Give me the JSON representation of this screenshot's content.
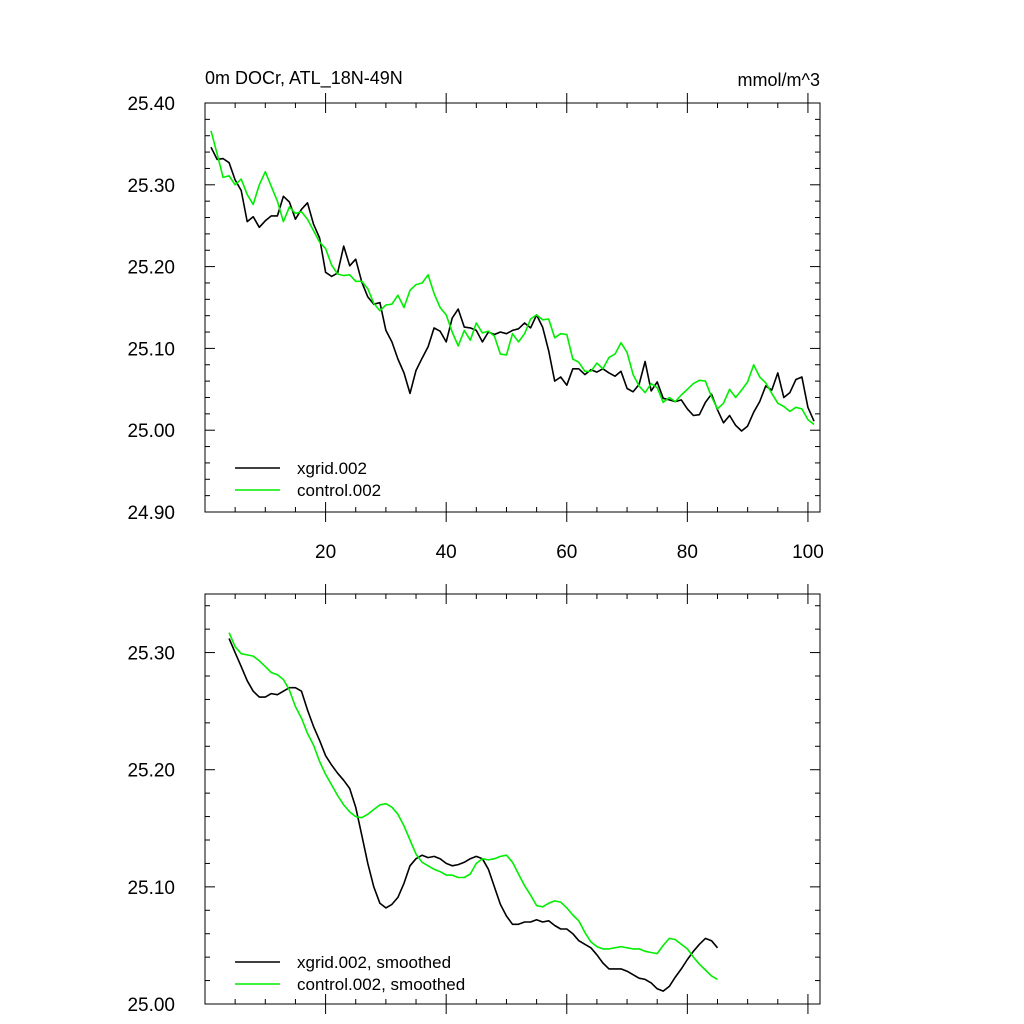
{
  "figure": {
    "title": "0m DOCr, ATL_18N-49N",
    "units": "mmol/m^3"
  },
  "colors": {
    "xgrid": "#000000",
    "control": "#00ee00"
  },
  "chart_data": [
    {
      "type": "line",
      "title": "0m DOCr, ATL_18N-49N",
      "units_label": "mmol/m^3",
      "xlabel": "",
      "ylabel": "",
      "xlim": [
        0,
        102
      ],
      "ylim": [
        24.9,
        25.4
      ],
      "xticks": [
        20,
        40,
        60,
        80,
        100
      ],
      "yticks": [
        24.9,
        25.0,
        25.1,
        25.2,
        25.3,
        25.4
      ],
      "ytick_labels": [
        "24.90",
        "25.00",
        "25.10",
        "25.20",
        "25.30",
        "25.40"
      ],
      "legend_position": "bottom-left",
      "x_start": 1,
      "series": [
        {
          "name": "xgrid.002",
          "color": "#000000",
          "values": [
            25.346,
            25.331,
            25.332,
            25.327,
            25.306,
            25.293,
            25.255,
            25.261,
            25.248,
            25.256,
            25.262,
            25.262,
            25.286,
            25.279,
            25.258,
            25.27,
            25.278,
            25.252,
            25.235,
            25.193,
            25.188,
            25.192,
            25.225,
            25.201,
            25.209,
            25.181,
            25.163,
            25.154,
            25.156,
            25.122,
            25.108,
            25.087,
            25.07,
            25.045,
            25.073,
            25.088,
            25.102,
            25.125,
            25.121,
            25.108,
            25.137,
            25.148,
            25.126,
            25.125,
            25.122,
            25.108,
            25.12,
            25.117,
            25.12,
            25.118,
            25.122,
            25.124,
            25.131,
            25.125,
            25.141,
            25.126,
            25.097,
            25.06,
            25.065,
            25.055,
            25.075,
            25.075,
            25.068,
            25.074,
            25.071,
            25.075,
            25.07,
            25.066,
            25.072,
            25.051,
            25.047,
            25.056,
            25.084,
            25.048,
            25.059,
            25.039,
            25.037,
            25.035,
            25.037,
            25.026,
            25.018,
            25.019,
            25.034,
            25.044,
            25.025,
            25.009,
            25.018,
            25.006,
            24.999,
            25.005,
            25.022,
            25.035,
            25.054,
            25.049,
            25.07,
            25.04,
            25.046,
            25.062,
            25.065,
            25.028,
            25.011
          ]
        },
        {
          "name": "control.002",
          "color": "#00ee00",
          "values": [
            25.366,
            25.338,
            25.309,
            25.311,
            25.3,
            25.307,
            25.288,
            25.276,
            25.3,
            25.316,
            25.298,
            25.28,
            25.255,
            25.273,
            25.265,
            25.267,
            25.258,
            25.244,
            25.23,
            25.222,
            25.202,
            25.191,
            25.189,
            25.19,
            25.182,
            25.182,
            25.173,
            25.155,
            25.146,
            25.153,
            25.154,
            25.165,
            25.15,
            25.171,
            25.178,
            25.18,
            25.19,
            25.167,
            25.15,
            25.141,
            25.12,
            25.103,
            25.122,
            25.11,
            25.131,
            25.119,
            25.121,
            25.115,
            25.093,
            25.092,
            25.118,
            25.108,
            25.118,
            25.136,
            25.141,
            25.135,
            25.136,
            25.113,
            25.118,
            25.117,
            25.087,
            25.083,
            25.072,
            25.072,
            25.082,
            25.075,
            25.089,
            25.093,
            25.107,
            25.095,
            25.068,
            25.054,
            25.046,
            25.057,
            25.052,
            25.034,
            25.04,
            25.035,
            25.043,
            25.05,
            25.057,
            25.061,
            25.06,
            25.041,
            25.026,
            25.033,
            25.05,
            25.04,
            25.049,
            25.059,
            25.08,
            25.065,
            25.058,
            25.045,
            25.033,
            25.029,
            25.023,
            25.028,
            25.026,
            25.013,
            25.007
          ]
        }
      ]
    },
    {
      "type": "line",
      "title": "",
      "xlabel": "",
      "ylabel": "",
      "xlim": [
        0,
        102
      ],
      "ylim": [
        25.0,
        25.35
      ],
      "xticks": [
        20,
        40,
        60,
        80,
        100
      ],
      "yticks": [
        25.0,
        25.1,
        25.2,
        25.3
      ],
      "ytick_labels": [
        "25.00",
        "25.10",
        "25.20",
        "25.30"
      ],
      "legend_position": "bottom-left",
      "x_start": 4,
      "series": [
        {
          "name": "xgrid.002, smoothed",
          "color": "#000000",
          "values": [
            25.312,
            25.3,
            25.288,
            25.276,
            25.267,
            25.262,
            25.262,
            25.265,
            25.264,
            25.267,
            25.27,
            25.27,
            25.267,
            25.251,
            25.237,
            25.225,
            25.212,
            25.204,
            25.197,
            25.191,
            25.184,
            25.168,
            25.144,
            25.12,
            25.1,
            25.086,
            25.082,
            25.085,
            25.091,
            25.103,
            25.118,
            25.124,
            25.127,
            25.125,
            25.126,
            25.124,
            25.12,
            25.118,
            25.119,
            25.121,
            25.124,
            25.126,
            25.124,
            25.115,
            25.1,
            25.085,
            25.075,
            25.068,
            25.068,
            25.07,
            25.07,
            25.072,
            25.07,
            25.071,
            25.067,
            25.064,
            25.064,
            25.06,
            25.054,
            25.051,
            25.048,
            25.042,
            25.035,
            25.03,
            25.03,
            25.03,
            25.028,
            25.025,
            25.022,
            25.021,
            25.018,
            25.013,
            25.011,
            25.015,
            25.023,
            25.03,
            25.038,
            25.045,
            25.051,
            25.056,
            25.054,
            25.048
          ]
        },
        {
          "name": "control.002, smoothed",
          "color": "#00ee00",
          "values": [
            25.317,
            25.305,
            25.299,
            25.298,
            25.297,
            25.293,
            25.288,
            25.283,
            25.281,
            25.277,
            25.268,
            25.254,
            25.244,
            25.231,
            25.221,
            25.207,
            25.196,
            25.187,
            25.178,
            25.17,
            25.164,
            25.16,
            25.159,
            25.162,
            25.166,
            25.17,
            25.171,
            25.168,
            25.162,
            25.152,
            25.14,
            25.128,
            25.121,
            25.118,
            25.115,
            25.113,
            25.11,
            25.11,
            25.108,
            25.108,
            25.111,
            25.12,
            25.124,
            25.123,
            25.124,
            25.126,
            25.127,
            25.121,
            25.111,
            25.101,
            25.093,
            25.084,
            25.083,
            25.086,
            25.088,
            25.087,
            25.082,
            25.076,
            25.071,
            25.061,
            25.053,
            25.049,
            25.047,
            25.047,
            25.048,
            25.049,
            25.048,
            25.047,
            25.047,
            25.045,
            25.044,
            25.043,
            25.05,
            25.056,
            25.055,
            25.051,
            25.047,
            25.04,
            25.034,
            25.029,
            25.024,
            25.021
          ]
        }
      ]
    }
  ]
}
